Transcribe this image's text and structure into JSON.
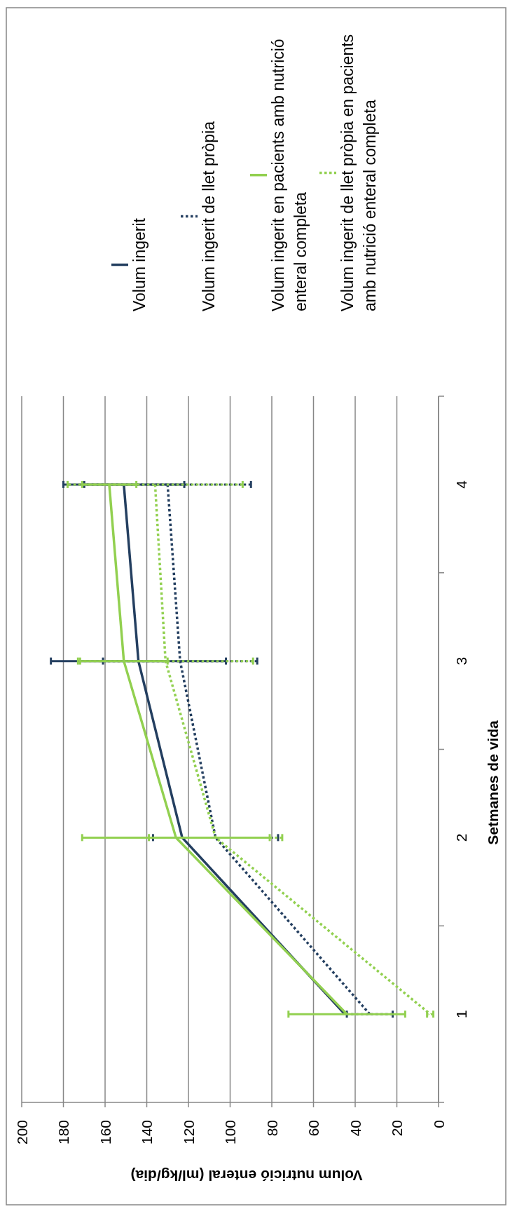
{
  "chart_data": {
    "type": "line",
    "orientation": "horizontal",
    "xlabel": "Volum nutrició enteral (ml/kg/dia)",
    "ylabel": "Setmanes de vida",
    "categories": [
      "4",
      "3",
      "2",
      "1"
    ],
    "xlim": [
      200,
      0
    ],
    "xticks": [
      0,
      20,
      40,
      60,
      80,
      100,
      120,
      140,
      160,
      180,
      200
    ],
    "grid": "x",
    "legend": "top",
    "series": [
      {
        "name": "Volum ingerit",
        "color": "#243f60",
        "line_style": "solid",
        "values": [
          151,
          144,
          123,
          45
        ],
        "errors": [
          29,
          42,
          null,
          null
        ]
      },
      {
        "name": "Volum ingerit de llet pròpia",
        "color": "#243f60",
        "line_style": "dotted",
        "values": [
          130,
          124,
          107,
          33
        ],
        "errors": [
          40,
          37,
          30,
          11
        ]
      },
      {
        "name": "Volum ingerit en pacients amb nutrició enteral completa",
        "color": "#92d050",
        "line_style": "solid",
        "values": [
          158,
          151,
          126,
          44
        ],
        "errors": [
          13,
          21,
          45,
          28
        ]
      },
      {
        "name": "Volum ingerit de llet pròpia en pacients amb nutrició enteral completa",
        "color": "#92d050",
        "line_style": "dotted",
        "values": [
          136,
          131,
          107,
          4
        ],
        "errors": [
          42,
          42,
          32,
          1.5
        ]
      }
    ]
  }
}
